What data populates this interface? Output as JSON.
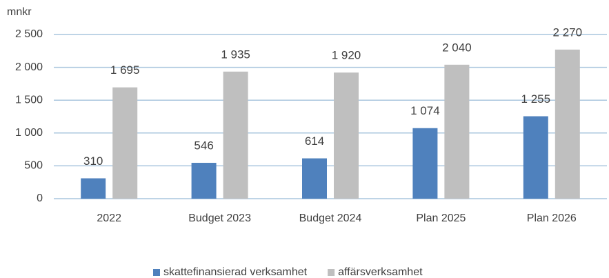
{
  "chart_data": {
    "type": "bar",
    "y_label": "mnkr",
    "categories": [
      "2022",
      "Budget 2023",
      "Budget 2024",
      "Plan 2025",
      "Plan 2026"
    ],
    "series": [
      {
        "name": "skattefinansierad verksamhet",
        "color": "#4f81bd",
        "values": [
          310,
          546,
          614,
          1074,
          1255
        ],
        "value_labels": [
          "310",
          "546",
          "614",
          "1 074",
          "1 255"
        ]
      },
      {
        "name": "affärsverksamhet",
        "color": "#bfbfbf",
        "values": [
          1695,
          1935,
          1920,
          2040,
          2270
        ],
        "value_labels": [
          "1 695",
          "1 935",
          "1 920",
          "2 040",
          "2 270"
        ]
      }
    ],
    "ylim": [
      0,
      2500
    ],
    "yticks": [
      0,
      500,
      {
        "value": 1000,
        "label": "1 000"
      },
      {
        "value": 1500,
        "label": "1 500"
      },
      {
        "value": 2000,
        "label": "2 000"
      },
      {
        "value": 2500,
        "label": "2 500"
      }
    ],
    "grid": true,
    "legend": "bottom"
  }
}
